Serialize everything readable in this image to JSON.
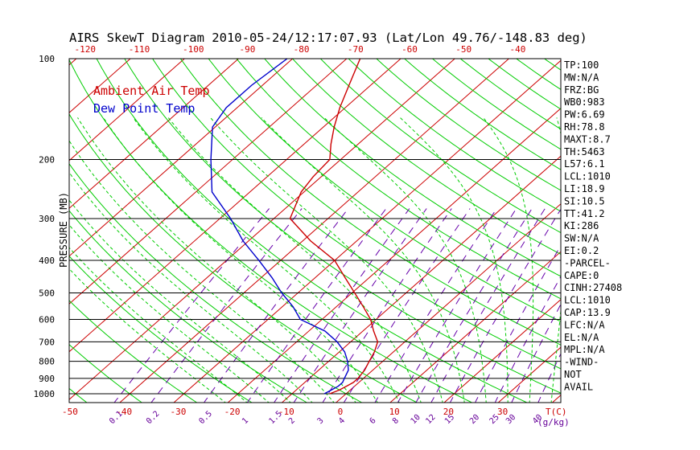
{
  "chart_data": {
    "type": "line",
    "title": "AIRS SkewT Diagram 2010-05-24/12:17:07.93 (Lat/Lon 49.76/-148.83 deg)",
    "ylabel": "PRESSURE (MB)",
    "xlabel_bottom_unit": "T(C)",
    "mixing_ratio_unit": "(g/kg)",
    "y_scale": "log",
    "ylim": [
      1050,
      100
    ],
    "pressure_ticks": [
      100,
      200,
      300,
      400,
      500,
      600,
      700,
      800,
      900,
      1000
    ],
    "pressure_tick_labels": [
      "100",
      "200",
      "300",
      "400",
      "500",
      "600",
      "700",
      "800",
      "900",
      "1000"
    ],
    "bottom_temp_ticks": [
      -50,
      -40,
      -30,
      -20,
      -10,
      0,
      10,
      20,
      30
    ],
    "bottom_temp_labels": [
      "-50",
      "-40",
      "-30",
      "-20",
      "-10",
      "0",
      "10",
      "20",
      "30"
    ],
    "top_temp_ticks": [
      -120,
      -110,
      -100,
      -90,
      -80,
      -70,
      -60,
      -50,
      -40
    ],
    "top_temp_labels": [
      "-120",
      "-110",
      "-100",
      "-90",
      "-80",
      "-70",
      "-60",
      "-50",
      "-40"
    ],
    "mixing_ratio_labels": [
      "0.1",
      "0.2",
      "0.5",
      "1",
      "1.5",
      "2",
      "3",
      "4",
      "6",
      "8",
      "10",
      "12",
      "15",
      "20",
      "25",
      "30",
      "40"
    ],
    "mixing_ratio_values": [
      0.1,
      0.2,
      0.5,
      1,
      1.5,
      2,
      3,
      4,
      6,
      8,
      10,
      12,
      15,
      20,
      25,
      30,
      40
    ],
    "grid": true,
    "legend": "top-left",
    "series": [
      {
        "name": "Ambient Air Temp",
        "color": "#cc0000",
        "points": [
          [
            1000,
            -3
          ],
          [
            975,
            -2
          ],
          [
            950,
            -1.5
          ],
          [
            925,
            -1
          ],
          [
            900,
            -1
          ],
          [
            850,
            -1.5
          ],
          [
            800,
            -2.5
          ],
          [
            750,
            -3.5
          ],
          [
            700,
            -5
          ],
          [
            650,
            -8
          ],
          [
            600,
            -11
          ],
          [
            550,
            -15
          ],
          [
            500,
            -19.5
          ],
          [
            450,
            -24.5
          ],
          [
            400,
            -30
          ],
          [
            350,
            -38.5
          ],
          [
            300,
            -47
          ],
          [
            250,
            -50.5
          ],
          [
            225,
            -51.5
          ],
          [
            200,
            -52
          ],
          [
            180,
            -55
          ],
          [
            160,
            -58
          ],
          [
            140,
            -61
          ],
          [
            120,
            -64
          ],
          [
            100,
            -67.5
          ]
        ]
      },
      {
        "name": "Dew Point Temp",
        "color": "#0000cc",
        "points": [
          [
            1000,
            -4
          ],
          [
            975,
            -3.5
          ],
          [
            950,
            -3
          ],
          [
            925,
            -3
          ],
          [
            900,
            -3.5
          ],
          [
            850,
            -4.5
          ],
          [
            800,
            -6.5
          ],
          [
            750,
            -9
          ],
          [
            700,
            -12.5
          ],
          [
            650,
            -17
          ],
          [
            600,
            -24
          ],
          [
            550,
            -28
          ],
          [
            500,
            -33
          ],
          [
            450,
            -38
          ],
          [
            400,
            -44
          ],
          [
            350,
            -51
          ],
          [
            300,
            -58
          ],
          [
            250,
            -67
          ],
          [
            200,
            -74
          ],
          [
            160,
            -80.5
          ],
          [
            140,
            -82
          ],
          [
            120,
            -82
          ],
          [
            100,
            -81
          ]
        ]
      }
    ],
    "indices": [
      "TP:100",
      "MW:N/A",
      "FRZ:BG",
      "WB0:983",
      "PW:6.69",
      "RH:78.8",
      "MAXT:8.7",
      "TH:5463",
      "L57:6.1",
      "LCL:1010",
      "LI:18.9",
      "SI:10.5",
      "TT:41.2",
      "KI:286",
      "SW:N/A",
      "EI:0.2",
      "-PARCEL-",
      "CAPE:0",
      "CINH:27408",
      "LCL:1010",
      "CAP:13.9",
      "LFC:N/A",
      "EL:N/A",
      "MPL:N/A",
      "-WIND-",
      "NOT",
      "AVAIL"
    ],
    "colors": {
      "isotherm": "#cc0000",
      "dry_adiabat": "#00cc00",
      "moist_adiabat": "#00cc00",
      "mixing_ratio": "#6600aa",
      "isobar": "#000000",
      "bottom_labels": "#cc0000",
      "mixing_labels": "#660099"
    }
  }
}
